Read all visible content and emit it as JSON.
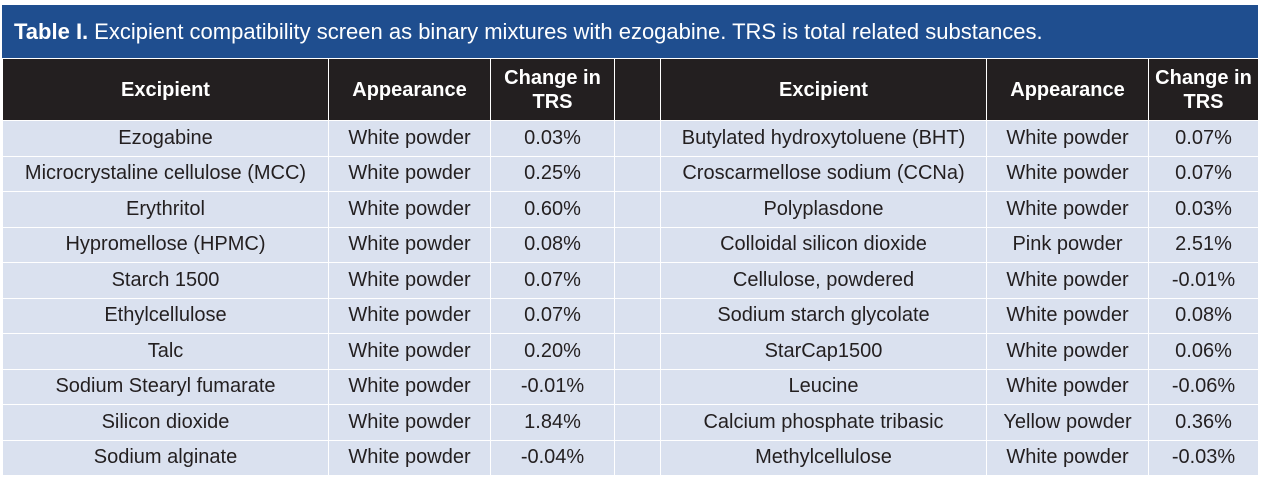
{
  "caption": {
    "label": "Table I.",
    "text": "Excipient compatibility screen as binary mixtures with ezogabine. TRS is total related substances."
  },
  "headers": {
    "excipient": "Excipient",
    "appearance": "Appearance",
    "change": "Change in TRS"
  },
  "rows": [
    {
      "left": {
        "excipient": "Ezogabine",
        "appearance": "White powder",
        "change": "0.03%"
      },
      "right": {
        "excipient": "Butylated hydroxytoluene (BHT)",
        "appearance": "White powder",
        "change": "0.07%"
      }
    },
    {
      "left": {
        "excipient": "Microcrystaline cellulose (MCC)",
        "appearance": "White powder",
        "change": "0.25%"
      },
      "right": {
        "excipient": "Croscarmellose sodium (CCNa)",
        "appearance": "White powder",
        "change": "0.07%"
      }
    },
    {
      "left": {
        "excipient": "Erythritol",
        "appearance": "White powder",
        "change": "0.60%"
      },
      "right": {
        "excipient": "Polyplasdone",
        "appearance": "White powder",
        "change": "0.03%"
      }
    },
    {
      "left": {
        "excipient": "Hypromellose (HPMC)",
        "appearance": "White powder",
        "change": "0.08%"
      },
      "right": {
        "excipient": "Colloidal silicon dioxide",
        "appearance": "Pink powder",
        "change": "2.51%"
      }
    },
    {
      "left": {
        "excipient": "Starch 1500",
        "appearance": "White powder",
        "change": "0.07%"
      },
      "right": {
        "excipient": "Cellulose, powdered",
        "appearance": "White powder",
        "change": "-0.01%"
      }
    },
    {
      "left": {
        "excipient": "Ethylcellulose",
        "appearance": "White powder",
        "change": "0.07%"
      },
      "right": {
        "excipient": "Sodium starch glycolate",
        "appearance": "White powder",
        "change": "0.08%"
      }
    },
    {
      "left": {
        "excipient": "Talc",
        "appearance": "White powder",
        "change": "0.20%"
      },
      "right": {
        "excipient": "StarCap1500",
        "appearance": "White powder",
        "change": "0.06%"
      }
    },
    {
      "left": {
        "excipient": "Sodium Stearyl fumarate",
        "appearance": "White powder",
        "change": "-0.01%"
      },
      "right": {
        "excipient": "Leucine",
        "appearance": "White powder",
        "change": "-0.06%"
      }
    },
    {
      "left": {
        "excipient": "Silicon dioxide",
        "appearance": "White powder",
        "change": "1.84%"
      },
      "right": {
        "excipient": "Calcium phosphate tribasic",
        "appearance": "Yellow powder",
        "change": "0.36%"
      }
    },
    {
      "left": {
        "excipient": "Sodium alginate",
        "appearance": "White powder",
        "change": "-0.04%"
      },
      "right": {
        "excipient": "Methylcellulose",
        "appearance": "White powder",
        "change": "-0.03%"
      }
    }
  ],
  "colors": {
    "caption_bg": "#1f4e8f",
    "header_bg": "#231f20",
    "row_bg": "#dae1ef"
  }
}
